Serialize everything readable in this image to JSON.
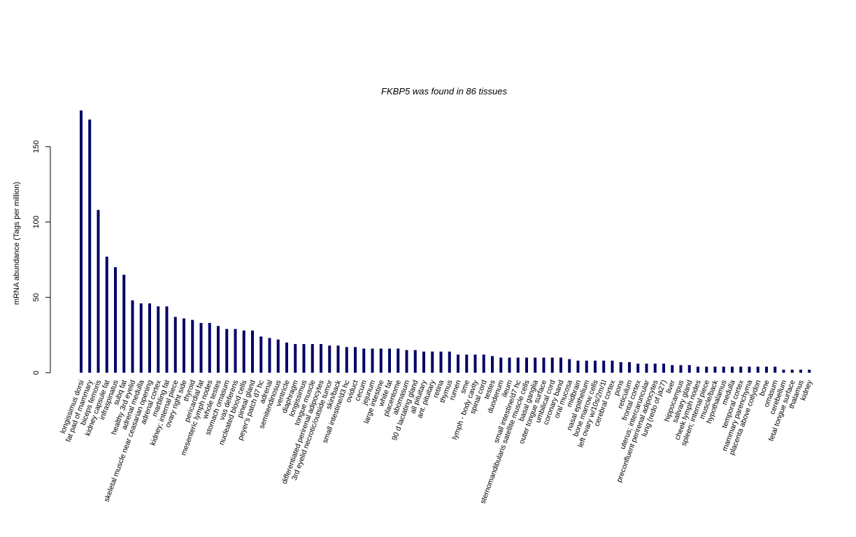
{
  "chart_data": {
    "type": "bar",
    "title": "FKBP5  was found in  86  tissues",
    "xlabel": "",
    "ylabel": "mRNA abundance (Tags per million)",
    "ylim": [
      0,
      174
    ],
    "yticks": [
      0,
      50,
      100,
      150
    ],
    "grid": false,
    "bar_color": "#000066",
    "categories": [
      "longissimus dorsi",
      "fat pad of mammary",
      "biceps femoris",
      "kidney capsule fat",
      "infraspinatus",
      "subq fat",
      "healthy 3rd eyelid",
      "adrenal medulla",
      "skeletal muscle near ceasarian opening",
      "adrenal cortex",
      "marbling fat",
      "kidney; internal piece",
      "ovary right side",
      "thyroid",
      "pericardial fat",
      "mesenteric lymph nodes",
      "whole testes",
      "stomach omasum",
      "vas deferens",
      "nucleated blood cells",
      "pineal gland",
      "peyer's patch d7 hc",
      "adrenal",
      "semitendinosus",
      "ventricle",
      "diaphragm",
      "longissimus",
      "tongue muscle",
      "differentiated perirenal adipocytes",
      "3rd eyelid necrotic/outside tumor",
      "skin/back",
      "small intestine/d3 hc",
      "oviduct",
      "cecum",
      "jejunum",
      "large intestine",
      "white fat",
      "placentome",
      "abomasum",
      "90 d lactating gland",
      "all pituitary",
      "ant. pituitary",
      "retina",
      "thymus",
      "rumen",
      "sme",
      "lymph - body cavity",
      "spinal cord",
      "testes",
      "duodenum",
      "ileum",
      "small intestine/d7 hc",
      "sternomandibularis satellite muscle cells",
      "basal ganglia",
      "outer tongue surface",
      "umbilical cord",
      "coronary band",
      "oral mucosa",
      "midbrain",
      "nasal epithelium",
      "bone marrow cells",
      "left ovary w/10s/2m/1l",
      "cerebral cortex",
      "pons",
      "reticulum",
      "frontal cortex",
      "uterus; intercaruncular",
      "preconfluent perirenal adipocytes",
      "lung (redo of ja27)",
      "liver",
      "hippocampus",
      "salivary gland",
      "cheek lymph nodes",
      "spleen; internal piece",
      "muscle/back",
      "hypothalamus",
      "medulla",
      "temporal cortex",
      "mammary parenchyma",
      "placenta above cotlydon",
      "bone",
      "omasum",
      "cerebellum",
      "fetal tongue surface",
      "thalamus",
      "kidney"
    ],
    "values": [
      174,
      168,
      108,
      77,
      70,
      65,
      48,
      46,
      46,
      44,
      44,
      37,
      36,
      35,
      33,
      33,
      31,
      29,
      29,
      28,
      28,
      24,
      23,
      22,
      20,
      19,
      19,
      19,
      19,
      18,
      18,
      17,
      17,
      16,
      16,
      16,
      16,
      16,
      15,
      15,
      14,
      14,
      14,
      14,
      12,
      12,
      12,
      12,
      11,
      10,
      10,
      10,
      10,
      10,
      10,
      10,
      10,
      9,
      8,
      8,
      8,
      8,
      8,
      7,
      7,
      6,
      6,
      6,
      6,
      5,
      5,
      5,
      4,
      4,
      4,
      4,
      4,
      4,
      4,
      4,
      4,
      4,
      2,
      2,
      2,
      2
    ]
  }
}
